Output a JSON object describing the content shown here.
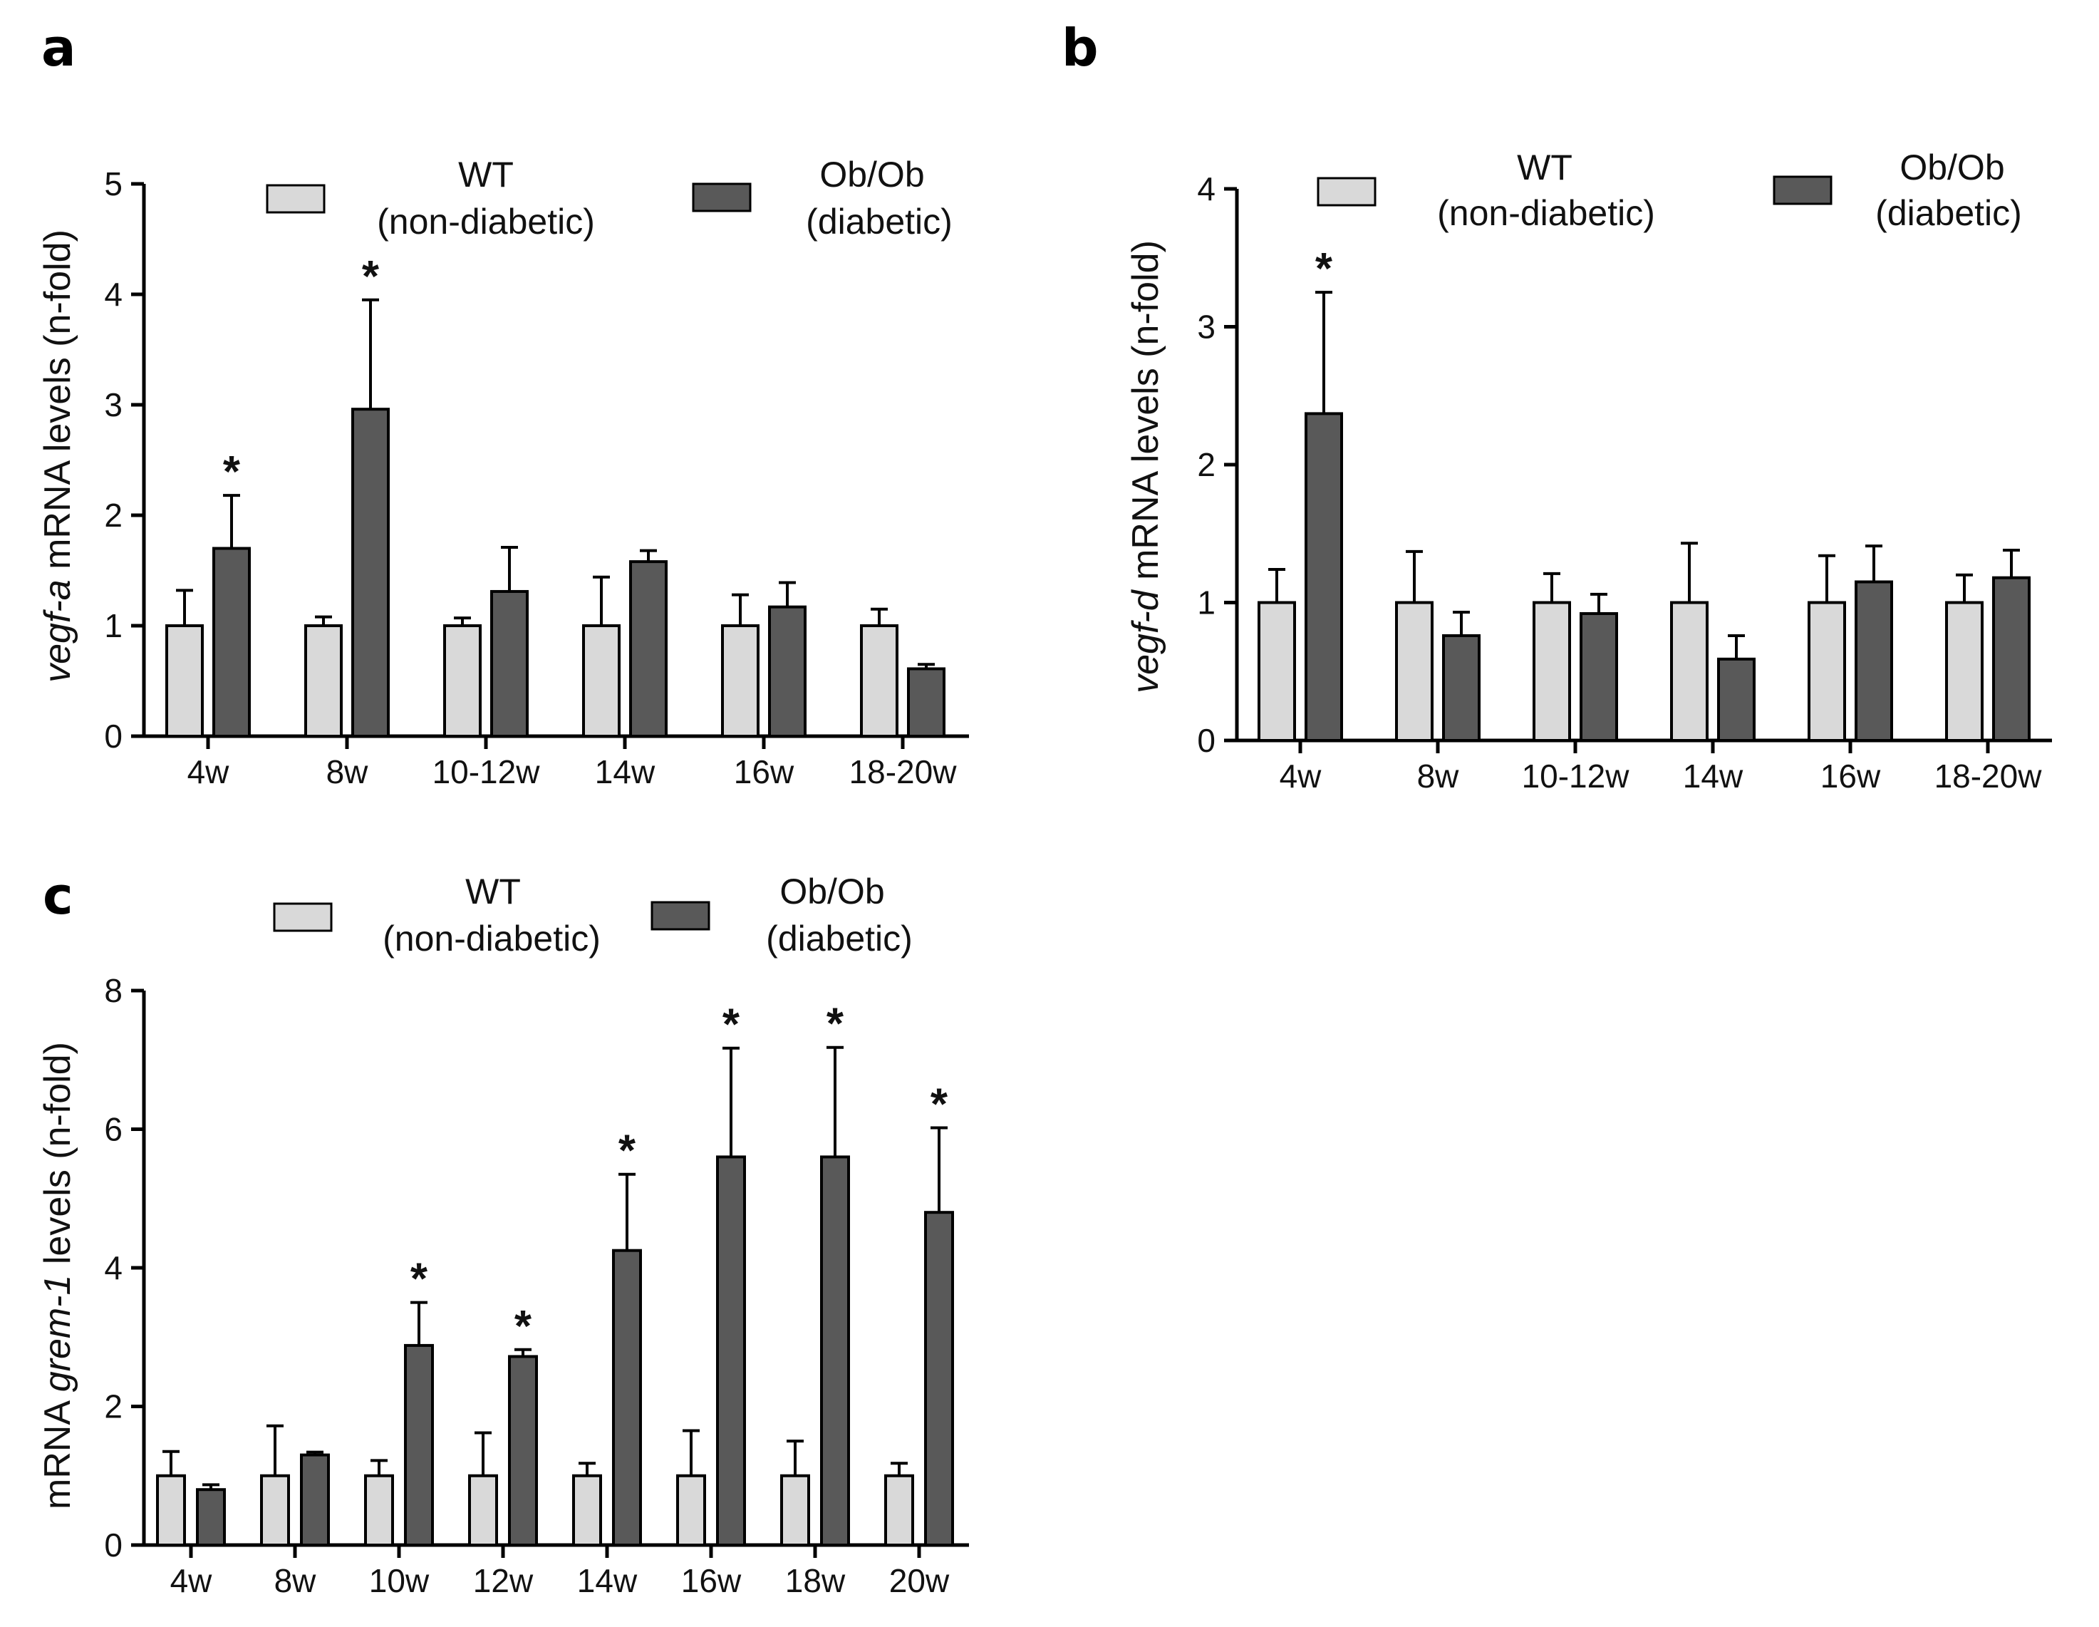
{
  "colors": {
    "wt": "#d9d9d9",
    "ob": "#595959",
    "outline": "#000000"
  },
  "legend": {
    "wt_line1": "WT",
    "wt_line2": "(non-diabetic)",
    "ob_line1": "Ob/Ob",
    "ob_line2": "(diabetic)"
  },
  "chart_data": [
    {
      "type": "bar",
      "panel": "a",
      "ylabel_italic": "vegf-a",
      "ylabel_rest": " mRNA levels (n-fold)",
      "ylim": [
        0,
        5
      ],
      "yticks": [
        0,
        1,
        2,
        3,
        4,
        5
      ],
      "categories": [
        "4w",
        "8w",
        "10-12w",
        "14w",
        "16w",
        "18-20w"
      ],
      "series": [
        {
          "name": "WT (non-diabetic)",
          "values": [
            1.0,
            1.0,
            1.0,
            1.0,
            1.0,
            1.0
          ],
          "errors": [
            0.32,
            0.08,
            0.07,
            0.44,
            0.28,
            0.15
          ]
        },
        {
          "name": "Ob/Ob (diabetic)",
          "values": [
            1.7,
            2.96,
            1.31,
            1.58,
            1.17,
            0.61
          ],
          "errors": [
            0.48,
            0.99,
            0.4,
            0.1,
            0.22,
            0.04
          ]
        }
      ],
      "significant": [
        true,
        true,
        false,
        false,
        false,
        false
      ],
      "star": "*"
    },
    {
      "type": "bar",
      "panel": "b",
      "ylabel_italic": "vegf-d",
      "ylabel_rest": " mRNA levels (n-fold)",
      "ylim": [
        0,
        4
      ],
      "yticks": [
        0,
        1,
        2,
        3,
        4
      ],
      "categories": [
        "4w",
        "8w",
        "10-12w",
        "14w",
        "16w",
        "18-20w"
      ],
      "series": [
        {
          "name": "WT (non-diabetic)",
          "values": [
            1.0,
            1.0,
            1.0,
            1.0,
            1.0,
            1.0
          ],
          "errors": [
            0.24,
            0.37,
            0.21,
            0.43,
            0.34,
            0.2
          ]
        },
        {
          "name": "Ob/Ob (diabetic)",
          "values": [
            2.37,
            0.76,
            0.92,
            0.59,
            1.15,
            1.18
          ],
          "errors": [
            0.88,
            0.17,
            0.14,
            0.17,
            0.26,
            0.2
          ]
        }
      ],
      "significant": [
        true,
        false,
        false,
        false,
        false,
        false
      ],
      "star": "*"
    },
    {
      "type": "bar",
      "panel": "c",
      "ylabel_before": "mRNA ",
      "ylabel_italic": "grem-1",
      "ylabel_rest": " levels (n-fold)",
      "ylim": [
        0,
        8
      ],
      "yticks": [
        0,
        2,
        4,
        6,
        8
      ],
      "categories": [
        "4w",
        "8w",
        "10w",
        "12w",
        "14w",
        "16w",
        "18w",
        "20w"
      ],
      "series": [
        {
          "name": "WT (non-diabetic)",
          "values": [
            1.0,
            1.0,
            1.0,
            1.0,
            1.0,
            1.0,
            1.0,
            1.0
          ],
          "errors": [
            0.35,
            0.72,
            0.22,
            0.62,
            0.18,
            0.65,
            0.5,
            0.18
          ]
        },
        {
          "name": "Ob/Ob (diabetic)",
          "values": [
            0.8,
            1.3,
            2.88,
            2.72,
            4.25,
            5.6,
            5.6,
            4.8
          ],
          "errors": [
            0.07,
            0.04,
            0.62,
            0.1,
            1.1,
            1.57,
            1.58,
            1.22
          ]
        }
      ],
      "significant": [
        false,
        false,
        true,
        true,
        true,
        true,
        true,
        true
      ],
      "star": "*"
    }
  ]
}
